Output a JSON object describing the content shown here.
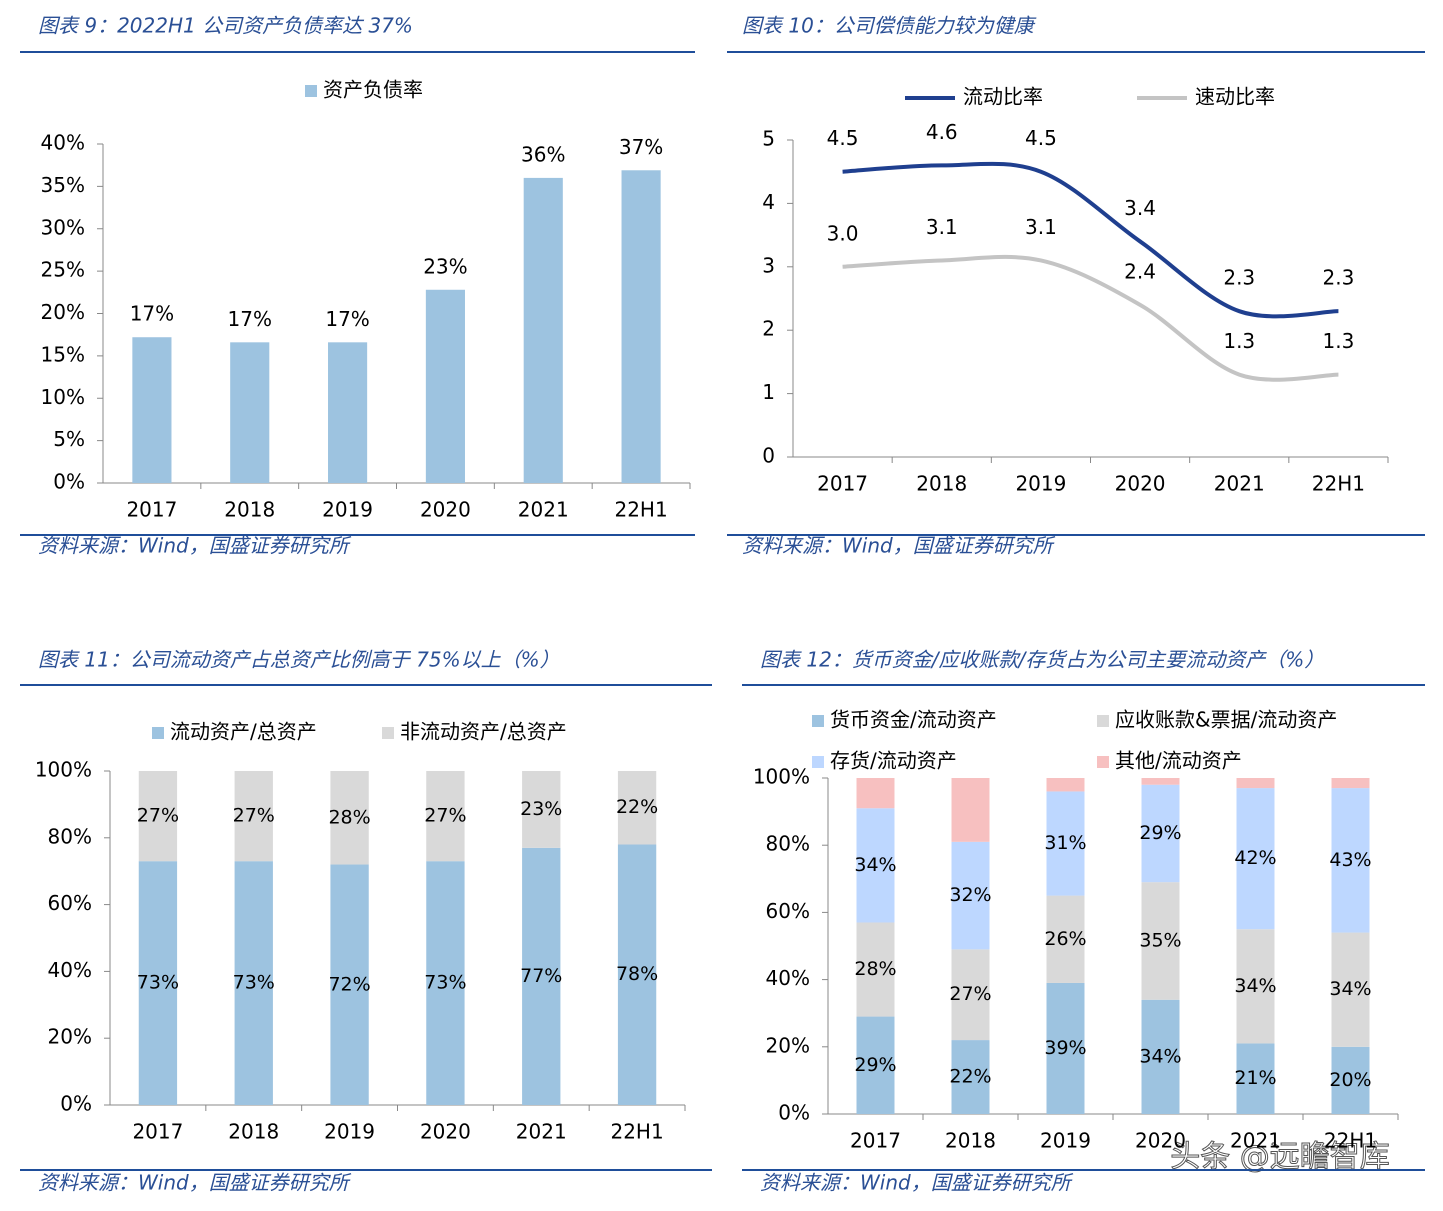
{
  "chart_data": [
    {
      "type": "bar",
      "title": "图表 9：2022H1 公司资产负债率达 37%",
      "source": "资料来源：Wind，国盛证券研究所",
      "categories": [
        "2017",
        "2018",
        "2019",
        "2020",
        "2021",
        "22H1"
      ],
      "series": [
        {
          "name": "资产负债率",
          "color": "#9dc3e0",
          "values": [
            17.2,
            16.6,
            16.6,
            22.8,
            36.0,
            36.9
          ],
          "value_labels": [
            "17%",
            "17%",
            "17%",
            "23%",
            "36%",
            "37%"
          ]
        }
      ],
      "ylim": [
        0,
        40
      ],
      "yticks": [
        {
          "value": 0,
          "label": "0%"
        },
        {
          "value": 5,
          "label": "5%"
        },
        {
          "value": 10,
          "label": "10%"
        },
        {
          "value": 15,
          "label": "15%"
        },
        {
          "value": 20,
          "label": "20%"
        },
        {
          "value": 25,
          "label": "25%"
        },
        {
          "value": 30,
          "label": "30%"
        },
        {
          "value": 35,
          "label": "35%"
        },
        {
          "value": 40,
          "label": "40%"
        }
      ]
    },
    {
      "type": "line",
      "title": "图表 10：公司偿债能力较为健康",
      "source": "资料来源：Wind，国盛证券研究所",
      "categories": [
        "2017",
        "2018",
        "2019",
        "2020",
        "2021",
        "22H1"
      ],
      "series": [
        {
          "name": "流动比率",
          "color": "#1f3f8f",
          "values": [
            4.5,
            4.6,
            4.5,
            3.4,
            2.3,
            2.3
          ],
          "value_labels": [
            "4.5",
            "4.6",
            "4.5",
            "3.4",
            "2.3",
            "2.3"
          ]
        },
        {
          "name": "速动比率",
          "color": "#c4c4c4",
          "values": [
            3.0,
            3.1,
            3.1,
            2.4,
            1.3,
            1.3
          ],
          "value_labels": [
            "3.0",
            "3.1",
            "3.1",
            "2.4",
            "1.3",
            "1.3"
          ]
        }
      ],
      "ylim": [
        0,
        5
      ],
      "yticks": [
        0,
        1,
        2,
        3,
        4,
        5
      ]
    },
    {
      "type": "stacked_bar",
      "title": "图表 11：公司流动资产占总资产比例高于 75%以上（%）",
      "source": "资料来源：Wind，国盛证券研究所",
      "categories": [
        "2017",
        "2018",
        "2019",
        "2020",
        "2021",
        "22H1"
      ],
      "series": [
        {
          "name": "流动资产/总资产",
          "color": "#9dc3e0",
          "values": [
            73,
            73,
            72,
            73,
            77,
            78
          ],
          "value_labels": [
            "73%",
            "73%",
            "72%",
            "73%",
            "77%",
            "78%"
          ]
        },
        {
          "name": "非流动资产/总资产",
          "color": "#d9d9d9",
          "values": [
            27,
            27,
            28,
            27,
            23,
            22
          ],
          "value_labels": [
            "27%",
            "27%",
            "28%",
            "27%",
            "23%",
            "22%"
          ]
        }
      ],
      "ylim": [
        0,
        100
      ],
      "yticks": [
        {
          "value": 0,
          "label": "0%"
        },
        {
          "value": 20,
          "label": "20%"
        },
        {
          "value": 40,
          "label": "40%"
        },
        {
          "value": 60,
          "label": "60%"
        },
        {
          "value": 80,
          "label": "80%"
        },
        {
          "value": 100,
          "label": "100%"
        }
      ]
    },
    {
      "type": "stacked_bar",
      "title": "图表 12：货币资金/应收账款/存货占为公司主要流动资产（%）",
      "source": "资料来源：Wind，国盛证券研究所",
      "categories": [
        "2017",
        "2018",
        "2019",
        "2020",
        "2021",
        "22H1"
      ],
      "series": [
        {
          "name": "货币资金/流动资产",
          "color": "#9dc3e0",
          "values": [
            29,
            22,
            39,
            34,
            21,
            20
          ],
          "value_labels": [
            "29%",
            "22%",
            "39%",
            "34%",
            "21%",
            "20%"
          ]
        },
        {
          "name": "应收账款&票据/流动资产",
          "color": "#d9d9d9",
          "values": [
            28,
            27,
            26,
            35,
            34,
            34
          ],
          "value_labels": [
            "28%",
            "27%",
            "26%",
            "35%",
            "34%",
            "34%"
          ]
        },
        {
          "name": "存货/流动资产",
          "color": "#bdd7ff",
          "values": [
            34,
            32,
            31,
            29,
            42,
            43
          ],
          "value_labels": [
            "34%",
            "32%",
            "31%",
            "29%",
            "42%",
            "43%"
          ]
        },
        {
          "name": "其他/流动资产",
          "color": "#f7c0c0",
          "values": [
            9,
            19,
            4,
            2,
            3,
            3
          ]
        }
      ],
      "ylim": [
        0,
        100
      ],
      "yticks": [
        {
          "value": 0,
          "label": "0%"
        },
        {
          "value": 20,
          "label": "20%"
        },
        {
          "value": 40,
          "label": "40%"
        },
        {
          "value": 60,
          "label": "60%"
        },
        {
          "value": 80,
          "label": "80%"
        },
        {
          "value": 100,
          "label": "100%"
        }
      ]
    }
  ],
  "watermark": "头条 @远瞻智库"
}
